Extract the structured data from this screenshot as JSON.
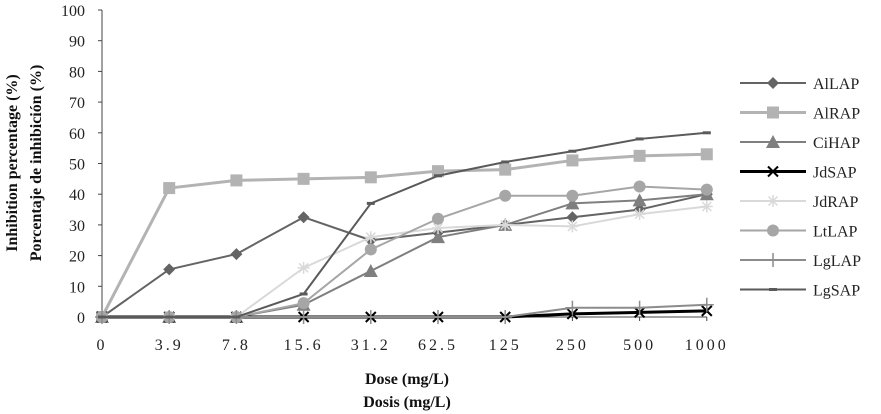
{
  "chart_data": {
    "type": "line",
    "categories": [
      "0",
      "3.9",
      "7.8",
      "15.6",
      "31.2",
      "62.5",
      "125",
      "250",
      "500",
      "1000"
    ],
    "ylim": [
      0,
      100
    ],
    "yticks": [
      "0",
      "10",
      "20",
      "30",
      "40",
      "50",
      "60",
      "70",
      "80",
      "90",
      "100"
    ],
    "ylabel": [
      "Inhibition percentage (%)",
      "Porcentaje de inhibición (%)"
    ],
    "xlabel": [
      "Dose (mg/L)",
      "Dosis (mg/L)"
    ],
    "legend_position": "right",
    "grid": false,
    "series": [
      {
        "name": "AlLAP",
        "color": "#646464",
        "marker": "diamond",
        "width": 2,
        "values": [
          0,
          15.5,
          20.5,
          32.5,
          25,
          27.5,
          30,
          32.5,
          35,
          40
        ]
      },
      {
        "name": "AlRAP",
        "color": "#b3b3b3",
        "marker": "square",
        "width": 3,
        "values": [
          0,
          42,
          44.5,
          45,
          45.5,
          47.5,
          48,
          51,
          52.5,
          53
        ]
      },
      {
        "name": "CiHAP",
        "color": "#7f7f7f",
        "marker": "triangle",
        "width": 2,
        "values": [
          0,
          0,
          0,
          4,
          15,
          26,
          30,
          37,
          38,
          40
        ]
      },
      {
        "name": "JdSAP",
        "color": "#000000",
        "marker": "x",
        "width": 3,
        "values": [
          0,
          0,
          0,
          0,
          0,
          0,
          0,
          1,
          1.5,
          2
        ]
      },
      {
        "name": "JdRAP",
        "color": "#d9d9d9",
        "marker": "star",
        "width": 2,
        "values": [
          0,
          0,
          0,
          16,
          26,
          29,
          30,
          29.5,
          33.5,
          36
        ]
      },
      {
        "name": "LtLAP",
        "color": "#a6a6a6",
        "marker": "circle",
        "width": 2,
        "values": [
          0,
          0,
          0,
          4.5,
          22,
          32,
          39.5,
          39.5,
          42.5,
          41.5
        ]
      },
      {
        "name": "LgLAP",
        "color": "#8c8c8c",
        "marker": "plus",
        "width": 2,
        "values": [
          0,
          0,
          0,
          0,
          0,
          0,
          0,
          3,
          3,
          4
        ]
      },
      {
        "name": "LgSAP",
        "color": "#5a5a5a",
        "marker": "dash",
        "width": 2,
        "values": [
          0,
          0,
          0,
          7.5,
          37,
          46,
          50.5,
          54,
          58,
          60
        ]
      }
    ]
  }
}
